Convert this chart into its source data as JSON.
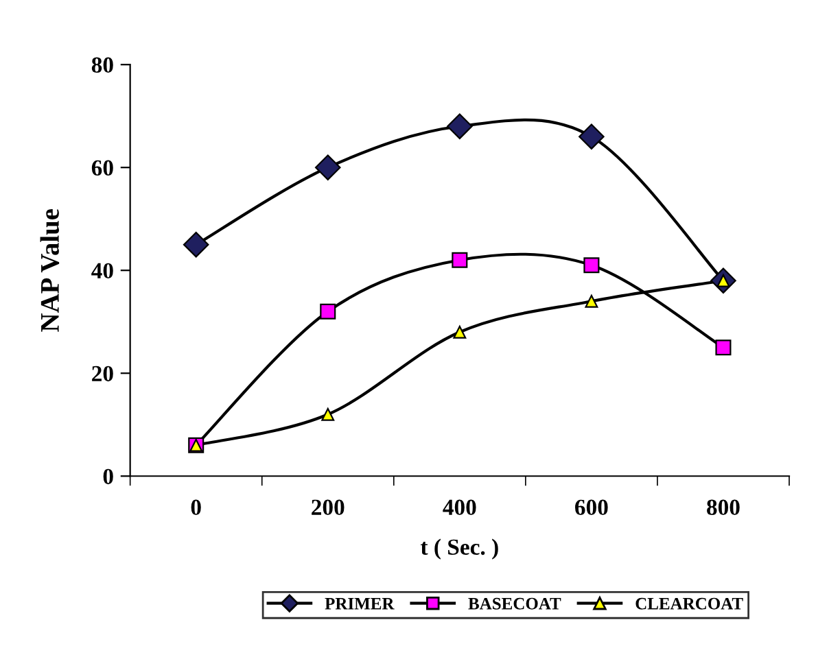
{
  "chart_data": {
    "type": "line",
    "xlabel": "t ( Sec. )",
    "ylabel": "NAP Value",
    "categories": [
      "0",
      "200",
      "400",
      "600",
      "800"
    ],
    "series": [
      {
        "name": "PRIMER",
        "color": "#1f1f5f",
        "marker": "diamond",
        "values": [
          45,
          60,
          68,
          66,
          38
        ]
      },
      {
        "name": "BASECOAT",
        "color": "#ff00ff",
        "marker": "square",
        "values": [
          6,
          32,
          42,
          41,
          25
        ]
      },
      {
        "name": "CLEARCOAT",
        "color": "#ffff00",
        "marker": "triangle",
        "values": [
          6,
          12,
          28,
          34,
          38
        ]
      }
    ],
    "ylim": [
      0,
      80
    ],
    "yticks": [
      0,
      20,
      40,
      60,
      80
    ],
    "grid": false,
    "legend": "bottom",
    "line_style": "solid"
  }
}
